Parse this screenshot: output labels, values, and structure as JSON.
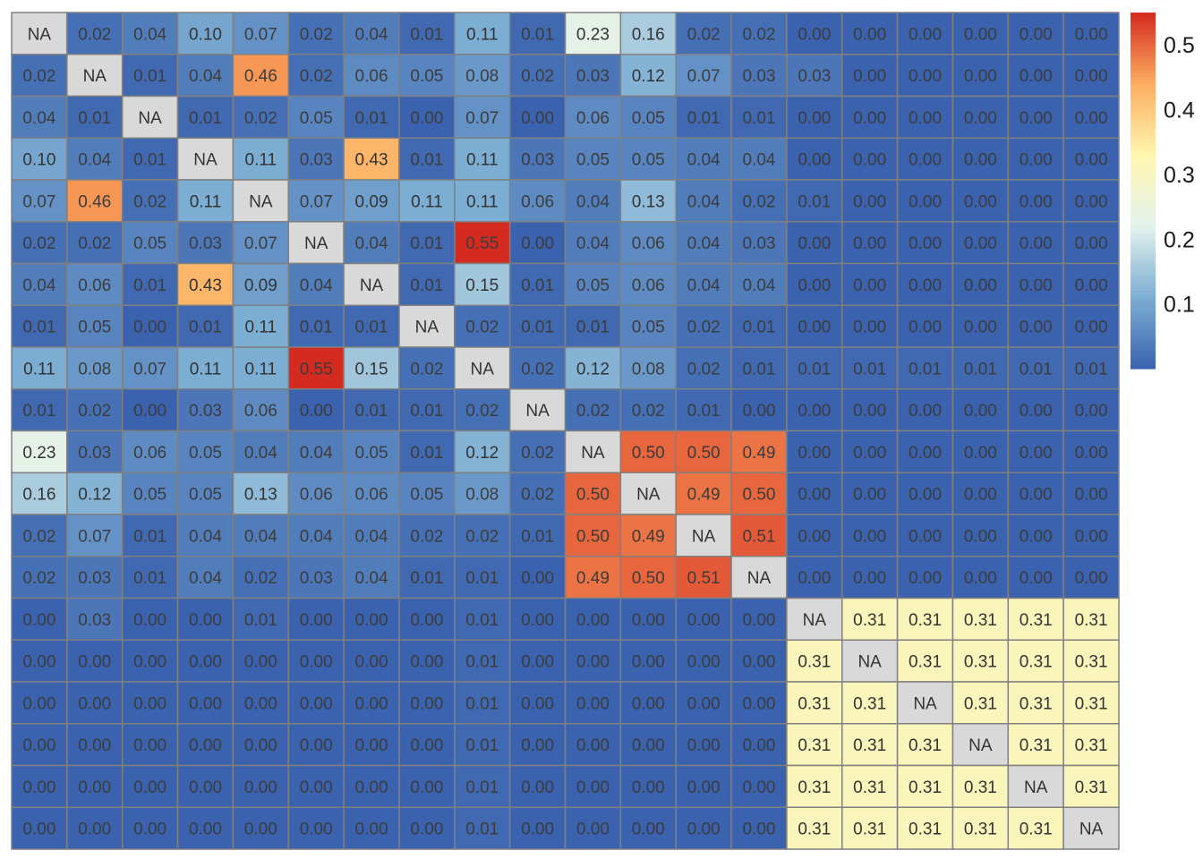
{
  "chart_data": {
    "type": "heatmap",
    "title": "",
    "xlabel": "",
    "ylabel": "",
    "rows": 20,
    "cols": 20,
    "na_label": "NA",
    "value_range": [
      0,
      0.55
    ],
    "matrix": [
      [
        null,
        0.02,
        0.04,
        0.1,
        0.07,
        0.02,
        0.04,
        0.01,
        0.11,
        0.01,
        0.23,
        0.16,
        0.02,
        0.02,
        0.0,
        0.0,
        0.0,
        0.0,
        0.0,
        0.0
      ],
      [
        0.02,
        null,
        0.01,
        0.04,
        0.46,
        0.02,
        0.06,
        0.05,
        0.08,
        0.02,
        0.03,
        0.12,
        0.07,
        0.03,
        0.03,
        0.0,
        0.0,
        0.0,
        0.0,
        0.0
      ],
      [
        0.04,
        0.01,
        null,
        0.01,
        0.02,
        0.05,
        0.01,
        0.0,
        0.07,
        0.0,
        0.06,
        0.05,
        0.01,
        0.01,
        0.0,
        0.0,
        0.0,
        0.0,
        0.0,
        0.0
      ],
      [
        0.1,
        0.04,
        0.01,
        null,
        0.11,
        0.03,
        0.43,
        0.01,
        0.11,
        0.03,
        0.05,
        0.05,
        0.04,
        0.04,
        0.0,
        0.0,
        0.0,
        0.0,
        0.0,
        0.0
      ],
      [
        0.07,
        0.46,
        0.02,
        0.11,
        null,
        0.07,
        0.09,
        0.11,
        0.11,
        0.06,
        0.04,
        0.13,
        0.04,
        0.02,
        0.01,
        0.0,
        0.0,
        0.0,
        0.0,
        0.0
      ],
      [
        0.02,
        0.02,
        0.05,
        0.03,
        0.07,
        null,
        0.04,
        0.01,
        0.55,
        0.0,
        0.04,
        0.06,
        0.04,
        0.03,
        0.0,
        0.0,
        0.0,
        0.0,
        0.0,
        0.0
      ],
      [
        0.04,
        0.06,
        0.01,
        0.43,
        0.09,
        0.04,
        null,
        0.01,
        0.15,
        0.01,
        0.05,
        0.06,
        0.04,
        0.04,
        0.0,
        0.0,
        0.0,
        0.0,
        0.0,
        0.0
      ],
      [
        0.01,
        0.05,
        0.0,
        0.01,
        0.11,
        0.01,
        0.01,
        null,
        0.02,
        0.01,
        0.01,
        0.05,
        0.02,
        0.01,
        0.0,
        0.0,
        0.0,
        0.0,
        0.0,
        0.0
      ],
      [
        0.11,
        0.08,
        0.07,
        0.11,
        0.11,
        0.55,
        0.15,
        0.02,
        null,
        0.02,
        0.12,
        0.08,
        0.02,
        0.01,
        0.01,
        0.01,
        0.01,
        0.01,
        0.01,
        0.01
      ],
      [
        0.01,
        0.02,
        0.0,
        0.03,
        0.06,
        0.0,
        0.01,
        0.01,
        0.02,
        null,
        0.02,
        0.02,
        0.01,
        0.0,
        0.0,
        0.0,
        0.0,
        0.0,
        0.0,
        0.0
      ],
      [
        0.23,
        0.03,
        0.06,
        0.05,
        0.04,
        0.04,
        0.05,
        0.01,
        0.12,
        0.02,
        null,
        0.5,
        0.5,
        0.49,
        0.0,
        0.0,
        0.0,
        0.0,
        0.0,
        0.0
      ],
      [
        0.16,
        0.12,
        0.05,
        0.05,
        0.13,
        0.06,
        0.06,
        0.05,
        0.08,
        0.02,
        0.5,
        null,
        0.49,
        0.5,
        0.0,
        0.0,
        0.0,
        0.0,
        0.0,
        0.0
      ],
      [
        0.02,
        0.07,
        0.01,
        0.04,
        0.04,
        0.04,
        0.04,
        0.02,
        0.02,
        0.01,
        0.5,
        0.49,
        null,
        0.51,
        0.0,
        0.0,
        0.0,
        0.0,
        0.0,
        0.0
      ],
      [
        0.02,
        0.03,
        0.01,
        0.04,
        0.02,
        0.03,
        0.04,
        0.01,
        0.01,
        0.0,
        0.49,
        0.5,
        0.51,
        null,
        0.0,
        0.0,
        0.0,
        0.0,
        0.0,
        0.0
      ],
      [
        0.0,
        0.03,
        0.0,
        0.0,
        0.01,
        0.0,
        0.0,
        0.0,
        0.01,
        0.0,
        0.0,
        0.0,
        0.0,
        0.0,
        null,
        0.31,
        0.31,
        0.31,
        0.31,
        0.31
      ],
      [
        0.0,
        0.0,
        0.0,
        0.0,
        0.0,
        0.0,
        0.0,
        0.0,
        0.01,
        0.0,
        0.0,
        0.0,
        0.0,
        0.0,
        0.31,
        null,
        0.31,
        0.31,
        0.31,
        0.31
      ],
      [
        0.0,
        0.0,
        0.0,
        0.0,
        0.0,
        0.0,
        0.0,
        0.0,
        0.01,
        0.0,
        0.0,
        0.0,
        0.0,
        0.0,
        0.31,
        0.31,
        null,
        0.31,
        0.31,
        0.31
      ],
      [
        0.0,
        0.0,
        0.0,
        0.0,
        0.0,
        0.0,
        0.0,
        0.0,
        0.01,
        0.0,
        0.0,
        0.0,
        0.0,
        0.0,
        0.31,
        0.31,
        0.31,
        null,
        0.31,
        0.31
      ],
      [
        0.0,
        0.0,
        0.0,
        0.0,
        0.0,
        0.0,
        0.0,
        0.0,
        0.01,
        0.0,
        0.0,
        0.0,
        0.0,
        0.0,
        0.31,
        0.31,
        0.31,
        0.31,
        null,
        0.31
      ],
      [
        0.0,
        0.0,
        0.0,
        0.0,
        0.0,
        0.0,
        0.0,
        0.0,
        0.01,
        0.0,
        0.0,
        0.0,
        0.0,
        0.0,
        0.31,
        0.31,
        0.31,
        0.31,
        0.31,
        null
      ]
    ],
    "colors": {
      "scale": [
        "#3A62AE",
        "#7CADD3",
        "#E3F2EC",
        "#FFF6B0",
        "#FDAF62",
        "#D52A20"
      ],
      "na_fill": "#D9D9D9",
      "grid_line": "#808080",
      "text_dark_bg": "#3C3C3C",
      "text_light_bg": "#333333"
    },
    "legend": {
      "position": "right",
      "ticks": [
        0.1,
        0.2,
        0.3,
        0.4,
        0.5
      ],
      "tick_labels": [
        "0.1",
        "0.2",
        "0.3",
        "0.4",
        "0.5"
      ]
    }
  }
}
